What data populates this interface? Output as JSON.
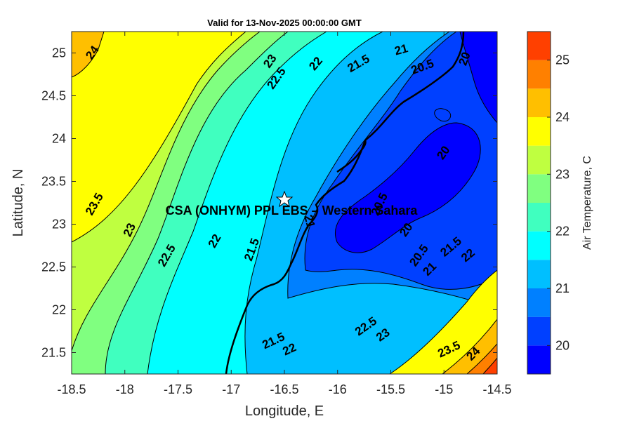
{
  "chart_data": {
    "type": "contour",
    "title": "Valid for 13-Nov-2025 00:00:00 GMT",
    "xlabel": "Longitude, E",
    "ylabel": "Latitude, N",
    "colorbar_label": "Air Temperature, C",
    "xlim": [
      -18.5,
      -14.5
    ],
    "ylim": [
      21.25,
      25.25
    ],
    "xticks": [
      "-18.5",
      "-18",
      "-17.5",
      "-17",
      "-16.5",
      "-16",
      "-15.5",
      "-15",
      "-14.5"
    ],
    "yticks": [
      "21.5",
      "22",
      "22.5",
      "23",
      "23.5",
      "24",
      "24.5",
      "25"
    ],
    "colorbar": {
      "range": [
        19.5,
        25.5
      ],
      "ticks": [
        "20",
        "21",
        "22",
        "23",
        "24",
        "25"
      ],
      "levels": [
        19.5,
        20,
        20.5,
        21,
        21.5,
        22,
        22.5,
        23,
        23.5,
        24,
        24.5,
        25,
        25.5
      ],
      "colors": [
        "#0000ff",
        "#0040ff",
        "#0080ff",
        "#00bfff",
        "#00ffff",
        "#40ffbf",
        "#80ff80",
        "#bfff40",
        "#ffff00",
        "#ffbf00",
        "#ff8000",
        "#ff4000"
      ]
    },
    "station": {
      "name": "CSA (ONHYM) PPL EBS – Western Sahara",
      "lon": -16.5,
      "lat": 23.3
    },
    "contour_labels": [
      {
        "text": "24",
        "lon": -18.3,
        "lat": 25.0,
        "rot": -55
      },
      {
        "text": "23",
        "lon": -16.63,
        "lat": 24.9,
        "rot": -55
      },
      {
        "text": "22.5",
        "lon": -16.57,
        "lat": 24.7,
        "rot": -55
      },
      {
        "text": "22",
        "lon": -16.2,
        "lat": 24.87,
        "rot": -50
      },
      {
        "text": "21.5",
        "lon": -15.8,
        "lat": 24.87,
        "rot": -30
      },
      {
        "text": "21",
        "lon": -15.4,
        "lat": 25.03,
        "rot": -15
      },
      {
        "text": "20.5",
        "lon": -15.2,
        "lat": 24.83,
        "rot": -20
      },
      {
        "text": "20",
        "lon": -14.8,
        "lat": 24.93,
        "rot": -70
      },
      {
        "text": "20",
        "lon": -15.0,
        "lat": 23.83,
        "rot": -55
      },
      {
        "text": "20.5",
        "lon": -15.6,
        "lat": 23.23,
        "rot": -65
      },
      {
        "text": "21",
        "lon": -16.27,
        "lat": 23.03,
        "rot": 75
      },
      {
        "text": "20",
        "lon": -15.35,
        "lat": 22.93,
        "rot": -55
      },
      {
        "text": "20.5",
        "lon": -15.23,
        "lat": 22.63,
        "rot": -55
      },
      {
        "text": "21",
        "lon": -15.13,
        "lat": 22.47,
        "rot": -45
      },
      {
        "text": "21.5",
        "lon": -14.93,
        "lat": 22.73,
        "rot": -40
      },
      {
        "text": "22",
        "lon": -14.77,
        "lat": 22.63,
        "rot": -40
      },
      {
        "text": "23.5",
        "lon": -18.28,
        "lat": 23.23,
        "rot": -60
      },
      {
        "text": "23",
        "lon": -17.95,
        "lat": 22.93,
        "rot": -65
      },
      {
        "text": "22.5",
        "lon": -17.6,
        "lat": 22.63,
        "rot": -60
      },
      {
        "text": "22",
        "lon": -17.15,
        "lat": 22.8,
        "rot": -60
      },
      {
        "text": "21.5",
        "lon": -16.8,
        "lat": 22.7,
        "rot": -70
      },
      {
        "text": "21.5",
        "lon": -16.6,
        "lat": 21.63,
        "rot": -25
      },
      {
        "text": "22",
        "lon": -16.45,
        "lat": 21.53,
        "rot": -25
      },
      {
        "text": "22.5",
        "lon": -15.73,
        "lat": 21.8,
        "rot": -35
      },
      {
        "text": "23",
        "lon": -15.57,
        "lat": 21.7,
        "rot": -35
      },
      {
        "text": "23.5",
        "lon": -14.95,
        "lat": 21.53,
        "rot": -25
      },
      {
        "text": "24",
        "lon": -14.72,
        "lat": 21.48,
        "rot": -45
      }
    ]
  }
}
